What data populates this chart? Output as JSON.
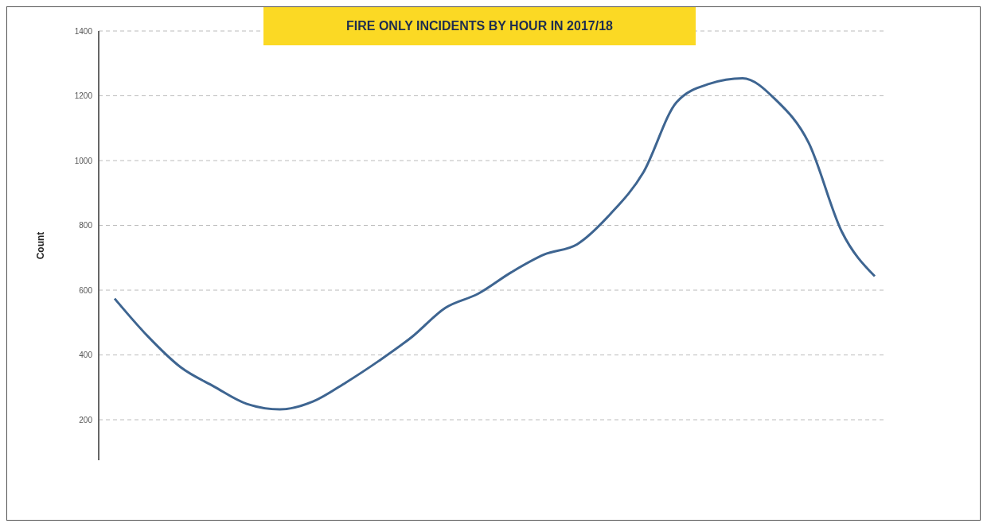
{
  "chart_data": {
    "type": "line",
    "title": "FIRE ONLY INCIDENTS BY HOUR IN 2017/18",
    "ylabel": "Count",
    "categories": [
      null,
      null,
      null,
      null,
      null,
      null,
      null,
      null,
      null,
      null,
      null,
      null,
      null,
      null,
      null,
      null,
      null,
      null,
      null,
      null,
      null,
      null,
      null,
      null
    ],
    "series": [
      {
        "color": "#3e6591",
        "values": [
          574,
          458,
          362,
          303,
          249,
          232,
          256,
          315,
          382,
          456,
          545,
          589,
          655,
          710,
          742,
          835,
          964,
          1180,
          1237,
          1254,
          1188,
          1055,
          781,
          643
        ]
      }
    ],
    "ylim": [
      75,
      1400
    ],
    "yticks": [
      200,
      400,
      600,
      800,
      1000,
      1200,
      1400
    ],
    "grid": "y",
    "marker": "none",
    "line_style": "solid"
  }
}
